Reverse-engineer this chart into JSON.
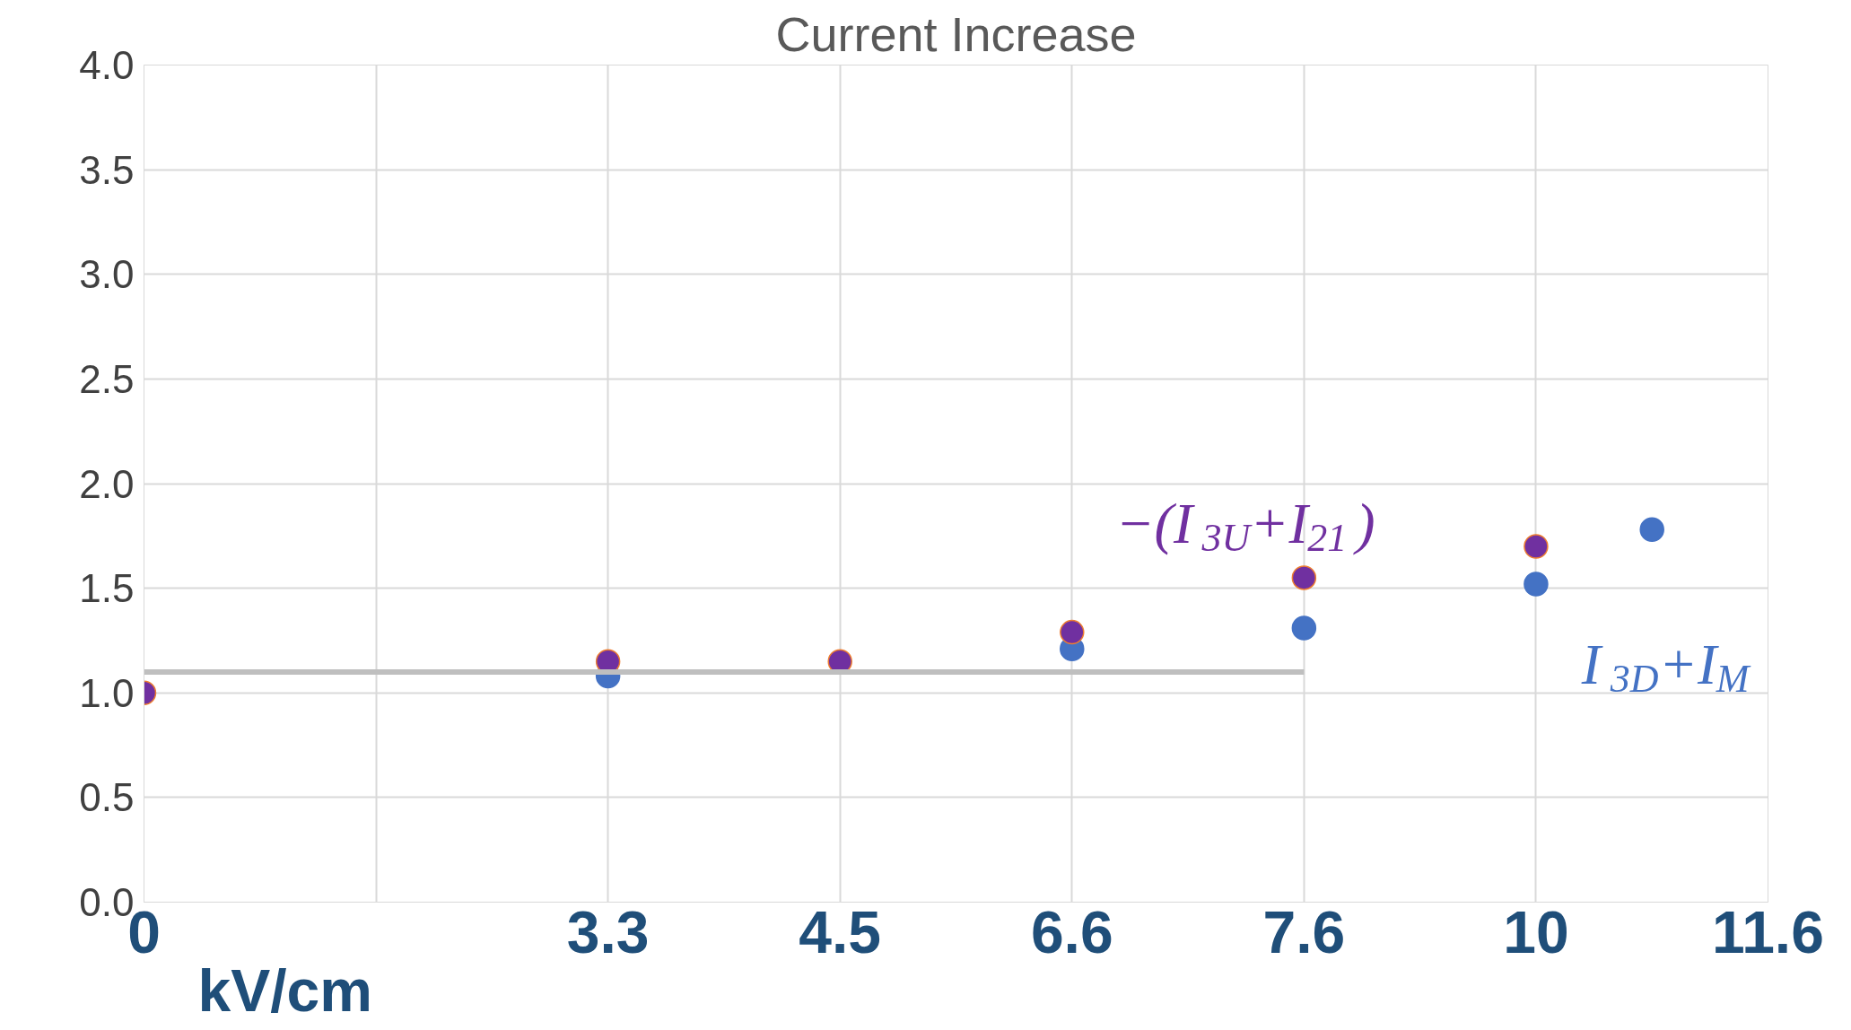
{
  "chart_data": {
    "type": "scatter",
    "title": "Current Increase",
    "xlabel": "kV/cm",
    "categories": [
      "0",
      null,
      null,
      null,
      "3.3",
      null,
      "4.5",
      null,
      "6.6",
      null,
      "7.6",
      null,
      "10",
      null,
      "11.6"
    ],
    "series": [
      {
        "name": null,
        "type": "line",
        "marker": "none",
        "color": "#bfbfbf",
        "values": [
          1.1,
          1.1,
          1.1,
          1.1,
          1.1,
          1.1,
          1.1,
          1.1,
          1.1,
          1.1,
          1.1,
          null,
          null,
          null,
          null
        ]
      },
      {
        "name": "I$_{3D}$+I$_{M}$",
        "color": "#4472c4",
        "values": [
          null,
          null,
          null,
          null,
          1.08,
          null,
          null,
          null,
          1.21,
          null,
          1.31,
          null,
          1.52,
          1.78,
          null
        ]
      },
      {
        "name": "−(I$_{3U}$+I$_{21}$)",
        "color": "#7030a0",
        "values": [
          1.0,
          null,
          null,
          null,
          1.15,
          null,
          1.15,
          null,
          1.29,
          null,
          1.55,
          null,
          1.7,
          null,
          null
        ]
      }
    ],
    "ylim": [
      0,
      4
    ],
    "yticks": [
      {
        "value": 0,
        "label": "0.0"
      },
      {
        "value": 0.5,
        "label": "0.5"
      },
      {
        "value": 1,
        "label": "1.0"
      },
      {
        "value": 1.5,
        "label": "1.5"
      },
      {
        "value": 2,
        "label": "2.0"
      },
      {
        "value": 2.5,
        "label": "2.5"
      },
      {
        "value": 3,
        "label": "3.0"
      },
      {
        "value": 3.5,
        "label": "3.5"
      },
      {
        "value": 4,
        "label": "4.0"
      }
    ],
    "grid": true,
    "marker": "circle"
  }
}
